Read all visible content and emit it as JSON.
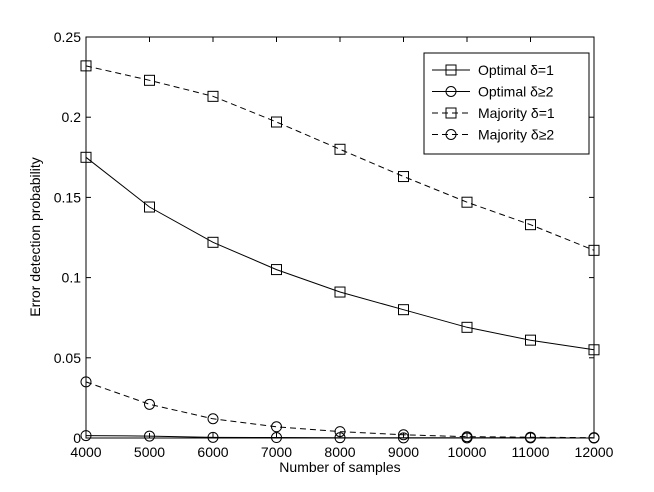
{
  "chart_data": {
    "type": "line",
    "title": "",
    "xlabel": "Number of samples",
    "ylabel": "Error detection probability",
    "xlim": [
      4000,
      12000
    ],
    "ylim": [
      0,
      0.25
    ],
    "x_ticks": [
      4000,
      5000,
      6000,
      7000,
      8000,
      9000,
      10000,
      11000,
      12000
    ],
    "y_ticks": [
      0,
      0.05,
      0.1,
      0.15,
      0.2,
      0.25
    ],
    "x_tick_labels": [
      "4000",
      "5000",
      "6000",
      "7000",
      "8000",
      "9000",
      "10000",
      "11000",
      "12000"
    ],
    "y_tick_labels": [
      "0",
      "0.05",
      "0.1",
      "0.15",
      "0.2",
      "0.25"
    ],
    "grid": false,
    "legend_position": "top-right",
    "x": [
      4000,
      5000,
      6000,
      7000,
      8000,
      9000,
      10000,
      11000,
      12000
    ],
    "series": [
      {
        "name": "Optimal δ=1",
        "line_style": "solid",
        "marker": "square",
        "values": [
          0.175,
          0.144,
          0.122,
          0.105,
          0.091,
          0.08,
          0.069,
          0.061,
          0.055
        ]
      },
      {
        "name": "Optimal δ≥2",
        "line_style": "solid",
        "marker": "circle",
        "values": [
          0.0015,
          0.0012,
          0.0004,
          0.0003,
          0.0002,
          0.0001,
          0.0001,
          0.0001,
          0.0
        ]
      },
      {
        "name": "Majority δ=1",
        "line_style": "dashed",
        "marker": "square",
        "values": [
          0.232,
          0.223,
          0.213,
          0.197,
          0.18,
          0.163,
          0.147,
          0.133,
          0.117
        ]
      },
      {
        "name": "Majority δ≥2",
        "line_style": "dashed",
        "marker": "circle",
        "values": [
          0.035,
          0.021,
          0.012,
          0.007,
          0.004,
          0.002,
          0.0008,
          0.0005,
          0.0002
        ]
      }
    ]
  }
}
